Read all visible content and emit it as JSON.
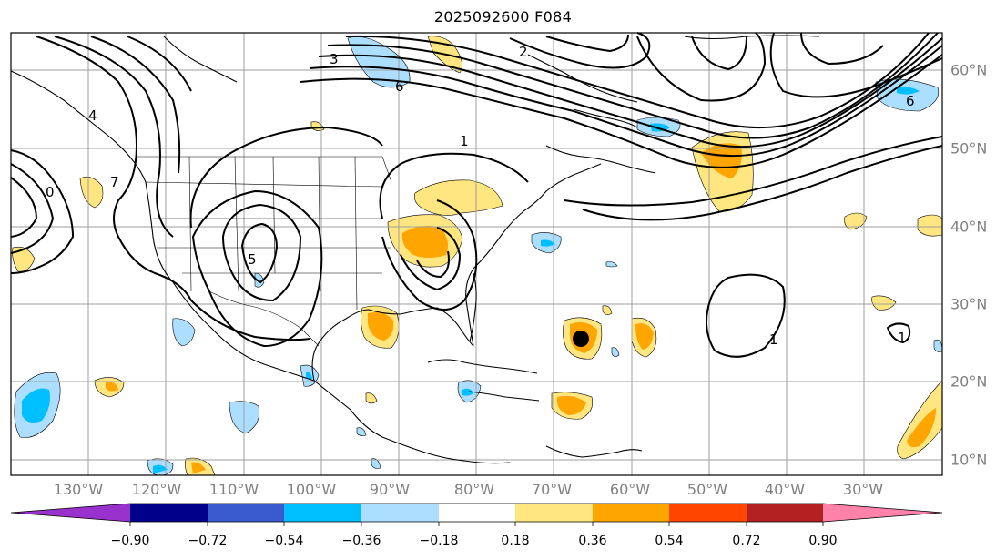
{
  "title": "2025092600 F084",
  "map": {
    "lon_labels": [
      "130°W",
      "120°W",
      "110°W",
      "100°W",
      "90°W",
      "80°W",
      "70°W",
      "60°W",
      "50°W",
      "40°W",
      "30°W"
    ],
    "lat_labels": [
      "60°N",
      "50°N",
      "40°N",
      "30°N",
      "20°N",
      "10°N"
    ],
    "contour_labels": [
      "3",
      "6",
      "1",
      "4",
      "7",
      "5",
      "0",
      "2",
      "1",
      "6",
      "1"
    ],
    "marker": "storm-center-dot"
  },
  "colorbar": {
    "ticks": [
      "−0.90",
      "−0.72",
      "−0.54",
      "−0.36",
      "−0.18",
      "0.18",
      "0.36",
      "0.54",
      "0.72",
      "0.90"
    ],
    "colors": [
      "#9932cc",
      "#00008b",
      "#3a5bd0",
      "#00bfff",
      "#abdeff",
      "#ffffff",
      "#ffe680",
      "#ffa500",
      "#ff4500",
      "#b22222",
      "#ff82ab"
    ]
  },
  "palette": {
    "neg_light": "#abdeff",
    "neg_mid": "#00bfff",
    "pos_light": "#ffe680",
    "pos_mid": "#ffa500",
    "grid": "#9e9e9e"
  }
}
